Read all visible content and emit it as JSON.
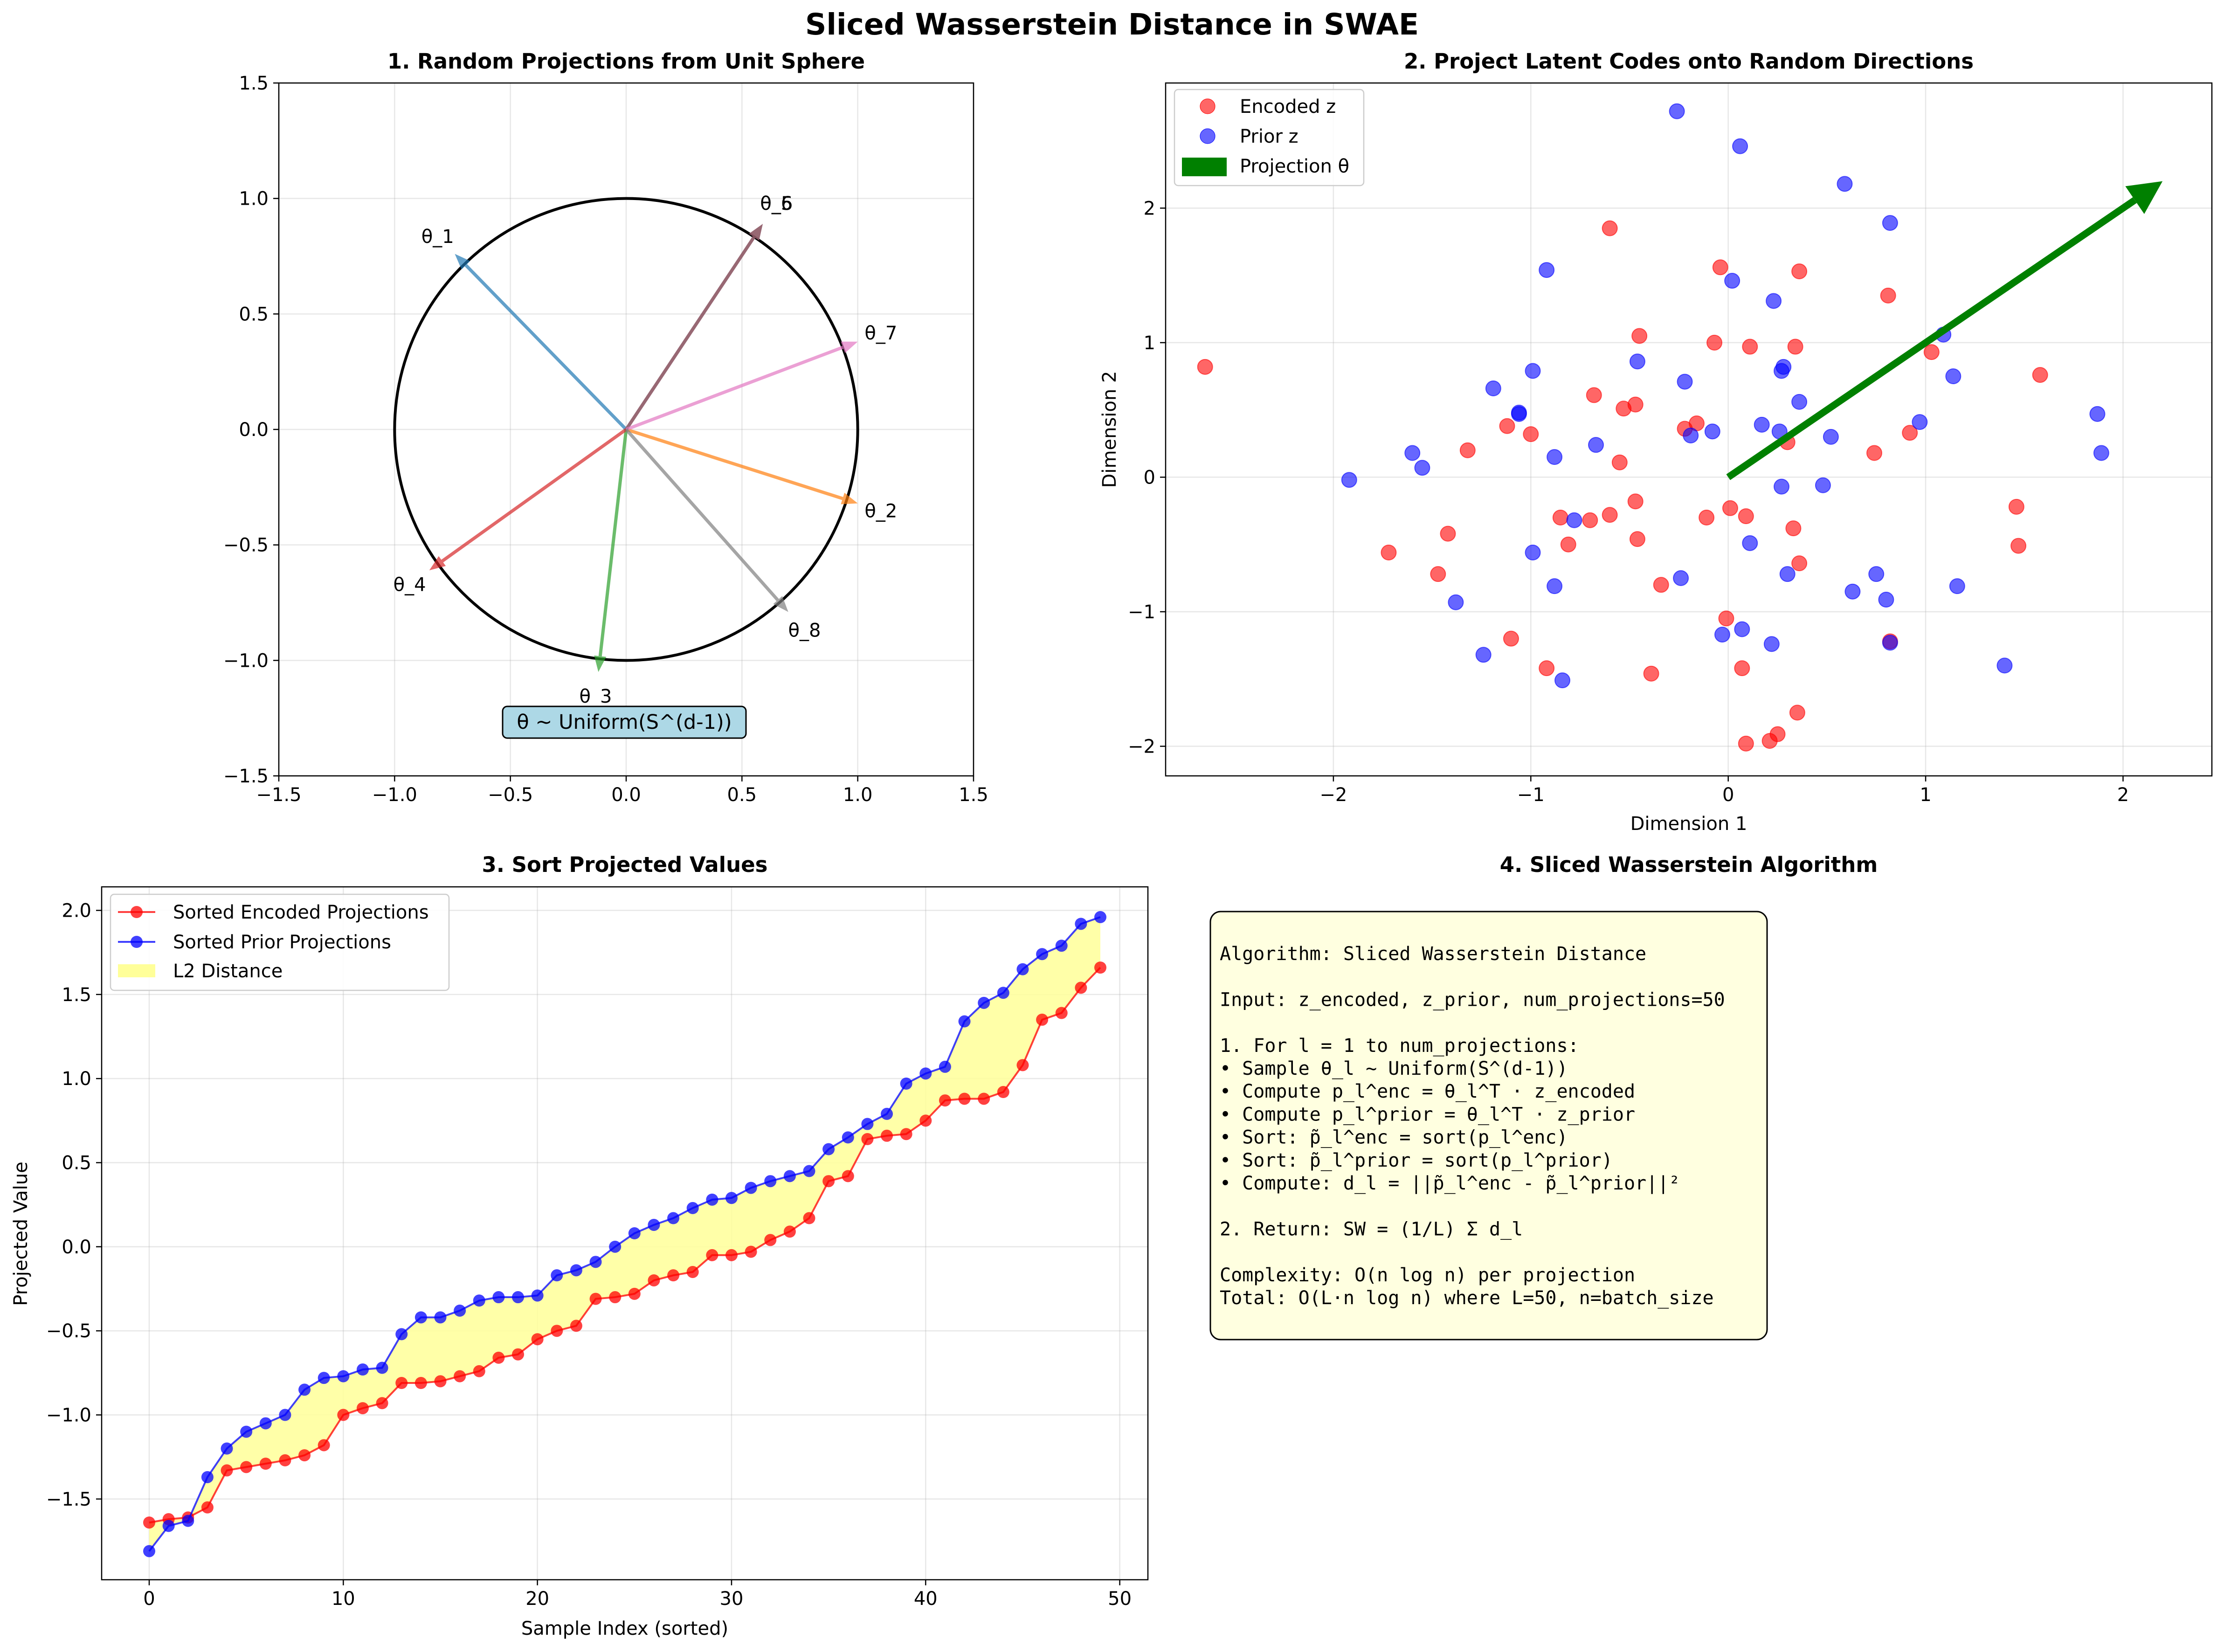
{
  "figure": {
    "title": "Sliced Wasserstein Distance in SWAE"
  },
  "chart_data": [
    {
      "type": "line",
      "title": "1. Random Projections from Unit Sphere",
      "xlim": [
        -1.5,
        1.5
      ],
      "ylim": [
        -1.5,
        1.5
      ],
      "xticks": [
        -1.5,
        -1.0,
        -0.5,
        0.0,
        0.5,
        1.0,
        1.5
      ],
      "yticks": [
        -1.5,
        -1.0,
        -0.5,
        0.0,
        0.5,
        1.0,
        1.5
      ],
      "grid": true,
      "circle": {
        "center": [
          0,
          0
        ],
        "radius": 1,
        "color": "#000000"
      },
      "vectors": [
        {
          "name": "θ_1",
          "x": -0.74,
          "y": 0.76,
          "color": "#1f77b4"
        },
        {
          "name": "θ_2",
          "x": 1.0,
          "y": -0.32,
          "color": "#ff7f0e"
        },
        {
          "name": "θ_3",
          "x": -0.12,
          "y": -1.05,
          "color": "#2ca02c"
        },
        {
          "name": "θ_4",
          "x": -0.85,
          "y": -0.61,
          "color": "#d62728"
        },
        {
          "name": "θ_5",
          "x": 0.59,
          "y": 0.89,
          "color": "#9467bd"
        },
        {
          "name": "θ_6",
          "x": 0.59,
          "y": 0.89,
          "color": "#8c564b"
        },
        {
          "name": "θ_7",
          "x": 1.0,
          "y": 0.38,
          "color": "#e377c2"
        },
        {
          "name": "θ_8",
          "x": 0.7,
          "y": -0.79,
          "color": "#7f7f7f"
        }
      ],
      "annotation": "θ ~ Uniform(S^(d-1))"
    },
    {
      "type": "scatter",
      "title": "2. Project Latent Codes onto Random Directions",
      "xlabel": "Dimension 1",
      "ylabel": "Dimension 2",
      "xlim": [
        -2.85,
        2.45
      ],
      "ylim": [
        -2.22,
        2.93
      ],
      "xticks": [
        -2,
        -1,
        0,
        1,
        2
      ],
      "yticks": [
        -2,
        -1,
        0,
        1,
        2
      ],
      "tick_labels": {
        "x": [
          "−2",
          "−1",
          "0",
          "1",
          "2"
        ],
        "y": [
          "−2",
          "−1",
          "0",
          "1",
          "2"
        ]
      },
      "grid": true,
      "legend_position": "top-left",
      "series": [
        {
          "name": "Encoded z",
          "color": "#ff0000",
          "points": [
            [
              -2.65,
              0.82
            ],
            [
              -1.72,
              -0.56
            ],
            [
              -1.47,
              -0.72
            ],
            [
              -1.42,
              -0.42
            ],
            [
              -1.32,
              0.2
            ],
            [
              -1.12,
              0.38
            ],
            [
              -1.1,
              -1.2
            ],
            [
              -1.0,
              0.32
            ],
            [
              -0.92,
              -1.42
            ],
            [
              -0.85,
              -0.3
            ],
            [
              -0.81,
              -0.5
            ],
            [
              -0.7,
              -0.32
            ],
            [
              -0.68,
              0.61
            ],
            [
              -0.6,
              1.85
            ],
            [
              -0.6,
              -0.28
            ],
            [
              -0.55,
              0.11
            ],
            [
              -0.53,
              0.51
            ],
            [
              -0.47,
              0.54
            ],
            [
              -0.47,
              -0.18
            ],
            [
              -0.46,
              -0.46
            ],
            [
              -0.45,
              1.05
            ],
            [
              -0.39,
              -1.46
            ],
            [
              -0.34,
              -0.8
            ],
            [
              -0.22,
              0.36
            ],
            [
              -0.16,
              0.4
            ],
            [
              -0.11,
              -0.3
            ],
            [
              -0.07,
              1.0
            ],
            [
              -0.04,
              1.56
            ],
            [
              -0.01,
              -1.05
            ],
            [
              0.01,
              -0.23
            ],
            [
              0.07,
              -1.42
            ],
            [
              0.09,
              -0.29
            ],
            [
              0.09,
              -1.98
            ],
            [
              0.11,
              0.97
            ],
            [
              0.21,
              -1.96
            ],
            [
              0.25,
              -1.91
            ],
            [
              0.3,
              0.26
            ],
            [
              0.33,
              -0.38
            ],
            [
              0.34,
              0.97
            ],
            [
              0.35,
              -1.75
            ],
            [
              0.36,
              1.53
            ],
            [
              0.36,
              -0.64
            ],
            [
              0.74,
              0.18
            ],
            [
              0.81,
              1.35
            ],
            [
              0.82,
              -1.22
            ],
            [
              0.92,
              0.33
            ],
            [
              1.03,
              0.93
            ],
            [
              1.58,
              0.76
            ],
            [
              1.46,
              -0.22
            ],
            [
              1.47,
              -0.51
            ]
          ]
        },
        {
          "name": "Prior z",
          "color": "#0000ff",
          "points": [
            [
              -1.92,
              -0.02
            ],
            [
              -1.6,
              0.18
            ],
            [
              -1.55,
              0.07
            ],
            [
              -1.38,
              -0.93
            ],
            [
              -1.24,
              -1.32
            ],
            [
              -1.19,
              0.66
            ],
            [
              -1.06,
              0.48
            ],
            [
              -1.06,
              0.47
            ],
            [
              -0.99,
              0.79
            ],
            [
              -0.99,
              -0.56
            ],
            [
              -0.92,
              1.54
            ],
            [
              -0.88,
              0.15
            ],
            [
              -0.88,
              -0.81
            ],
            [
              -0.84,
              -1.51
            ],
            [
              -0.78,
              -0.32
            ],
            [
              -0.67,
              0.24
            ],
            [
              -0.46,
              0.86
            ],
            [
              -0.26,
              2.72
            ],
            [
              -0.24,
              -0.75
            ],
            [
              -0.22,
              0.71
            ],
            [
              -0.19,
              0.31
            ],
            [
              -0.08,
              0.34
            ],
            [
              -0.03,
              -1.17
            ],
            [
              0.02,
              1.46
            ],
            [
              0.06,
              2.46
            ],
            [
              0.07,
              -1.13
            ],
            [
              0.11,
              -0.49
            ],
            [
              0.17,
              0.39
            ],
            [
              0.22,
              -1.24
            ],
            [
              0.23,
              1.31
            ],
            [
              0.26,
              0.34
            ],
            [
              0.27,
              -0.07
            ],
            [
              0.27,
              0.79
            ],
            [
              0.28,
              0.82
            ],
            [
              0.3,
              -0.72
            ],
            [
              0.36,
              0.56
            ],
            [
              0.48,
              -0.06
            ],
            [
              0.52,
              0.3
            ],
            [
              0.59,
              2.18
            ],
            [
              0.63,
              -0.85
            ],
            [
              0.75,
              -0.72
            ],
            [
              0.8,
              -0.91
            ],
            [
              0.82,
              1.89
            ],
            [
              0.82,
              -1.23
            ],
            [
              0.97,
              0.41
            ],
            [
              1.09,
              1.06
            ],
            [
              1.14,
              0.75
            ],
            [
              1.16,
              -0.81
            ],
            [
              1.4,
              -1.4
            ],
            [
              1.87,
              0.47
            ],
            [
              1.89,
              0.18
            ]
          ]
        },
        {
          "name": "Projection θ",
          "color": "#008000",
          "arrow": {
            "from": [
              0,
              0
            ],
            "to": [
              2.2,
              2.2
            ]
          }
        }
      ]
    },
    {
      "type": "line",
      "title": "3. Sort Projected Values",
      "xlabel": "Sample Index (sorted)",
      "ylabel": "Projected Value",
      "xlim": [
        -2.45,
        51.45
      ],
      "ylim": [
        -1.98,
        2.14
      ],
      "xticks": [
        0,
        10,
        20,
        30,
        40,
        50
      ],
      "yticks": [
        -1.5,
        -1.0,
        -0.5,
        0.0,
        0.5,
        1.0,
        1.5,
        2.0
      ],
      "tick_labels": {
        "y": [
          "−1.5",
          "−1.0",
          "−0.5",
          "0.0",
          "0.5",
          "1.0",
          "1.5",
          "2.0"
        ]
      },
      "grid": true,
      "legend_position": "top-left",
      "x": [
        0,
        1,
        2,
        3,
        4,
        5,
        6,
        7,
        8,
        9,
        10,
        11,
        12,
        13,
        14,
        15,
        16,
        17,
        18,
        19,
        20,
        21,
        22,
        23,
        24,
        25,
        26,
        27,
        28,
        29,
        30,
        31,
        32,
        33,
        34,
        35,
        36,
        37,
        38,
        39,
        40,
        41,
        42,
        43,
        44,
        45,
        46,
        47,
        48,
        49
      ],
      "series": [
        {
          "name": "Sorted Encoded Projections",
          "color": "#ff0000",
          "values": [
            -1.64,
            -1.62,
            -1.61,
            -1.55,
            -1.33,
            -1.31,
            -1.29,
            -1.27,
            -1.24,
            -1.18,
            -1.0,
            -0.96,
            -0.93,
            -0.81,
            -0.81,
            -0.8,
            -0.77,
            -0.74,
            -0.66,
            -0.64,
            -0.55,
            -0.5,
            -0.47,
            -0.31,
            -0.3,
            -0.28,
            -0.2,
            -0.17,
            -0.15,
            -0.05,
            -0.05,
            -0.03,
            0.04,
            0.09,
            0.17,
            0.39,
            0.42,
            0.64,
            0.66,
            0.67,
            0.75,
            0.87,
            0.88,
            0.88,
            0.92,
            1.08,
            1.35,
            1.39,
            1.54,
            1.66
          ]
        },
        {
          "name": "Sorted Prior Projections",
          "color": "#0000ff",
          "values": [
            -1.81,
            -1.66,
            -1.63,
            -1.37,
            -1.2,
            -1.1,
            -1.05,
            -1.0,
            -0.85,
            -0.78,
            -0.77,
            -0.73,
            -0.72,
            -0.52,
            -0.42,
            -0.42,
            -0.38,
            -0.32,
            -0.3,
            -0.3,
            -0.29,
            -0.17,
            -0.14,
            -0.09,
            0.0,
            0.08,
            0.13,
            0.17,
            0.23,
            0.28,
            0.29,
            0.35,
            0.39,
            0.42,
            0.45,
            0.58,
            0.65,
            0.73,
            0.79,
            0.97,
            1.03,
            1.07,
            1.34,
            1.45,
            1.51,
            1.65,
            1.74,
            1.79,
            1.92,
            1.96
          ]
        }
      ],
      "fill": {
        "name": "L2 Distance",
        "color": "#ffff99"
      }
    }
  ],
  "algorithm_panel": {
    "title": "4. Sliced Wasserstein Algorithm",
    "lines": [
      "Algorithm: Sliced Wasserstein Distance",
      "",
      "Input: z_encoded, z_prior, num_projections=50",
      "",
      "1. For l = 1 to num_projections:",
      "   • Sample θ_l ~ Uniform(S^(d-1))",
      "   • Compute p_l^enc = θ_l^T · z_encoded",
      "   • Compute p_l^prior = θ_l^T · z_prior",
      "   • Sort: p̃_l^enc = sort(p_l^enc)",
      "   • Sort: p̃_l^prior = sort(p_l^prior)",
      "   • Compute: d_l = ||p̃_l^enc - p̃_l^prior||²",
      "",
      "2. Return: SW = (1/L) Σ d_l",
      "",
      "Complexity: O(n log n) per projection",
      "Total: O(L·n log n) where L=50, n=batch_size"
    ]
  }
}
